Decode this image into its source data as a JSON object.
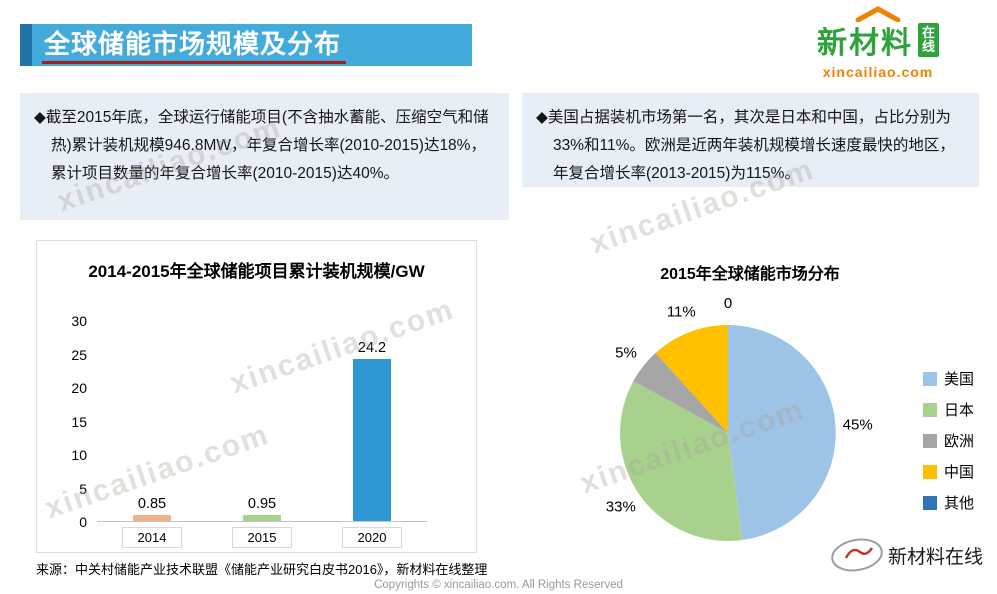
{
  "header": {
    "title": "全球储能市场规模及分布",
    "logo": {
      "brand": "新材料",
      "box_line1": "在",
      "box_line2": "线",
      "domain": "xincailiao.com"
    }
  },
  "bullets": {
    "left": "◆截至2015年底，全球运行储能项目(不含抽水蓄能、压缩空气和储热)累计装机规模946.8MW，年复合增长率(2010-2015)达18%，累计项目数量的年复合增长率(2010-2015)达40%。",
    "right": "◆美国占据装机市场第一名，其次是日本和中国，占比分别为33%和11%。欧洲是近两年装机规模增长速度最快的地区，年复合增长率(2013-2015)为115%。"
  },
  "chart_data": [
    {
      "type": "bar",
      "title": "2014-2015年全球储能项目累计装机规模/GW",
      "categories": [
        "2014",
        "2015",
        "2020"
      ],
      "values": [
        0.85,
        0.95,
        24.2
      ],
      "data_labels": [
        "0.85",
        "0.95",
        "24.2"
      ],
      "bar_colors": [
        "#F4B183",
        "#A9D18E",
        "#2E96D1"
      ],
      "xlabel": "",
      "ylabel": "",
      "ylim": [
        0,
        30
      ],
      "yticks": [
        0,
        5,
        10,
        15,
        20,
        25,
        30
      ],
      "grid": false,
      "legend": false
    },
    {
      "type": "pie",
      "title": "2015年全球储能市场分布",
      "labels": [
        "美国",
        "日本",
        "欧洲",
        "中国",
        "其他"
      ],
      "values": [
        45,
        33,
        5,
        11,
        0
      ],
      "slice_labels": [
        "45%",
        "33%",
        "5%",
        "11%",
        "0"
      ],
      "colors": [
        "#9DC3E6",
        "#A9D18E",
        "#A6A6A6",
        "#FFC000",
        "#2E75B6"
      ],
      "legend_position": "right"
    }
  ],
  "source": "来源：中关村储能产业技术联盟《储能产业研究白皮书2016》，新材料在线整理",
  "copyright": "Copyrights © xincailiao.com. All Rights Reserved",
  "bottom_logo": "新材料在线",
  "watermark": "xincailiao.com",
  "colors": {
    "header_bar": "#42ABDB",
    "header_accent": "#2273A8",
    "title_underline": "#A41E22",
    "panel_bg": "#E8EEF6",
    "logo_green": "#2EA33C",
    "logo_orange": "#F08200"
  }
}
